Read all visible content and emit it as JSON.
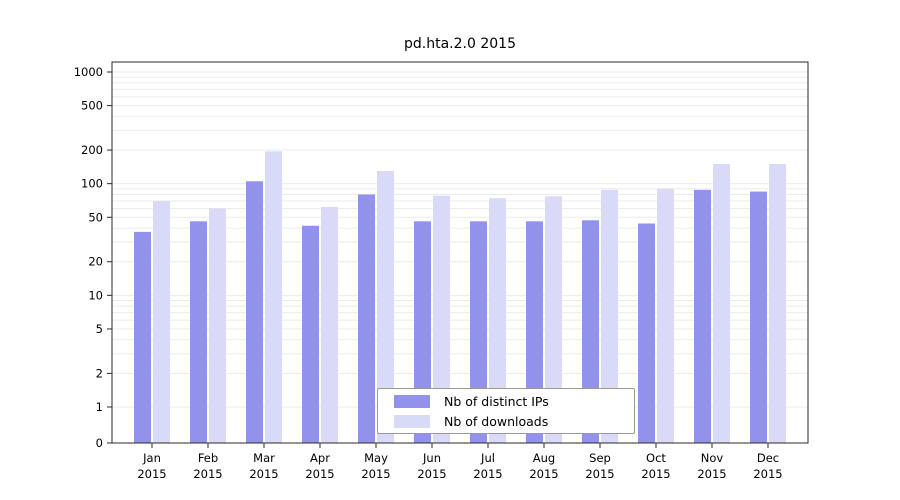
{
  "title": "pd.hta.2.0 2015",
  "chart_data": {
    "type": "bar",
    "title": "pd.hta.2.0 2015",
    "categories": [
      "Jan",
      "Feb",
      "Mar",
      "Apr",
      "May",
      "Jun",
      "Jul",
      "Aug",
      "Sep",
      "Oct",
      "Nov",
      "Dec"
    ],
    "year_label": "2015",
    "series": [
      {
        "name": "Nb of distinct IPs",
        "color": "#9292ec",
        "values": [
          37,
          46,
          105,
          42,
          80,
          46,
          46,
          46,
          47,
          44,
          88,
          85
        ]
      },
      {
        "name": "Nb of downloads",
        "color": "#d9d9f8",
        "values": [
          70,
          60,
          195,
          62,
          130,
          78,
          74,
          77,
          88,
          90,
          150,
          150
        ]
      }
    ],
    "yticks": [
      0,
      1,
      2,
      5,
      10,
      20,
      50,
      100,
      200,
      500,
      1000
    ],
    "yscale": "symlog",
    "ylim": [
      0,
      1000
    ],
    "grid": true,
    "legend_position": "inside-bottom-center"
  },
  "colors": {
    "grid": "#ebebeb",
    "frame": "#2b2b2b",
    "tick": "#2b2b2b",
    "background": "#ffffff"
  }
}
